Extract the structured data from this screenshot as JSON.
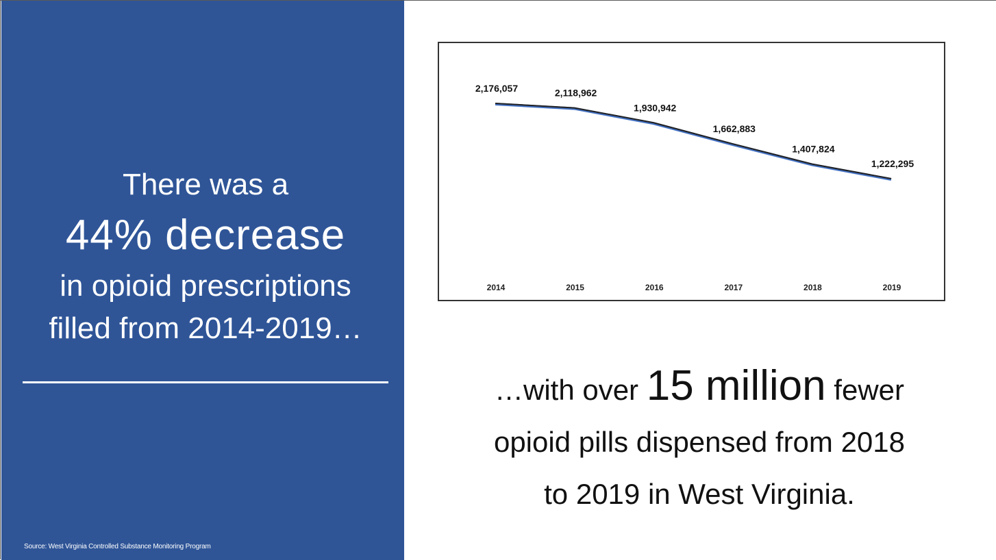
{
  "left": {
    "line1": "There was a",
    "line2": "44% decrease",
    "line3": "in opioid prescriptions",
    "line4": "filled from 2014-2019…",
    "source": "Source: West Virginia Controlled Substance Monitoring Program"
  },
  "tagline": {
    "pre": "…with over ",
    "highlight": "15 million",
    "post": " fewer",
    "line2": "opioid pills dispensed from 2018",
    "line3": "to 2019 in West Virginia."
  },
  "colors": {
    "panel": "#2f5597",
    "line_blue": "#4472c4",
    "line_dark": "#222222"
  },
  "chart_data": {
    "type": "line",
    "categories": [
      "2014",
      "2015",
      "2016",
      "2017",
      "2018",
      "2019"
    ],
    "values": [
      2176057,
      2118962,
      1930942,
      1662883,
      1407824,
      1222295
    ],
    "data_labels": [
      "2,176,057",
      "2,118,962",
      "1,930,942",
      "1,662,883",
      "1,407,824",
      "1,222,295"
    ],
    "title": "",
    "xlabel": "",
    "ylabel": "",
    "ylim": [
      0,
      2400000
    ],
    "grid": false,
    "legend": "none"
  }
}
